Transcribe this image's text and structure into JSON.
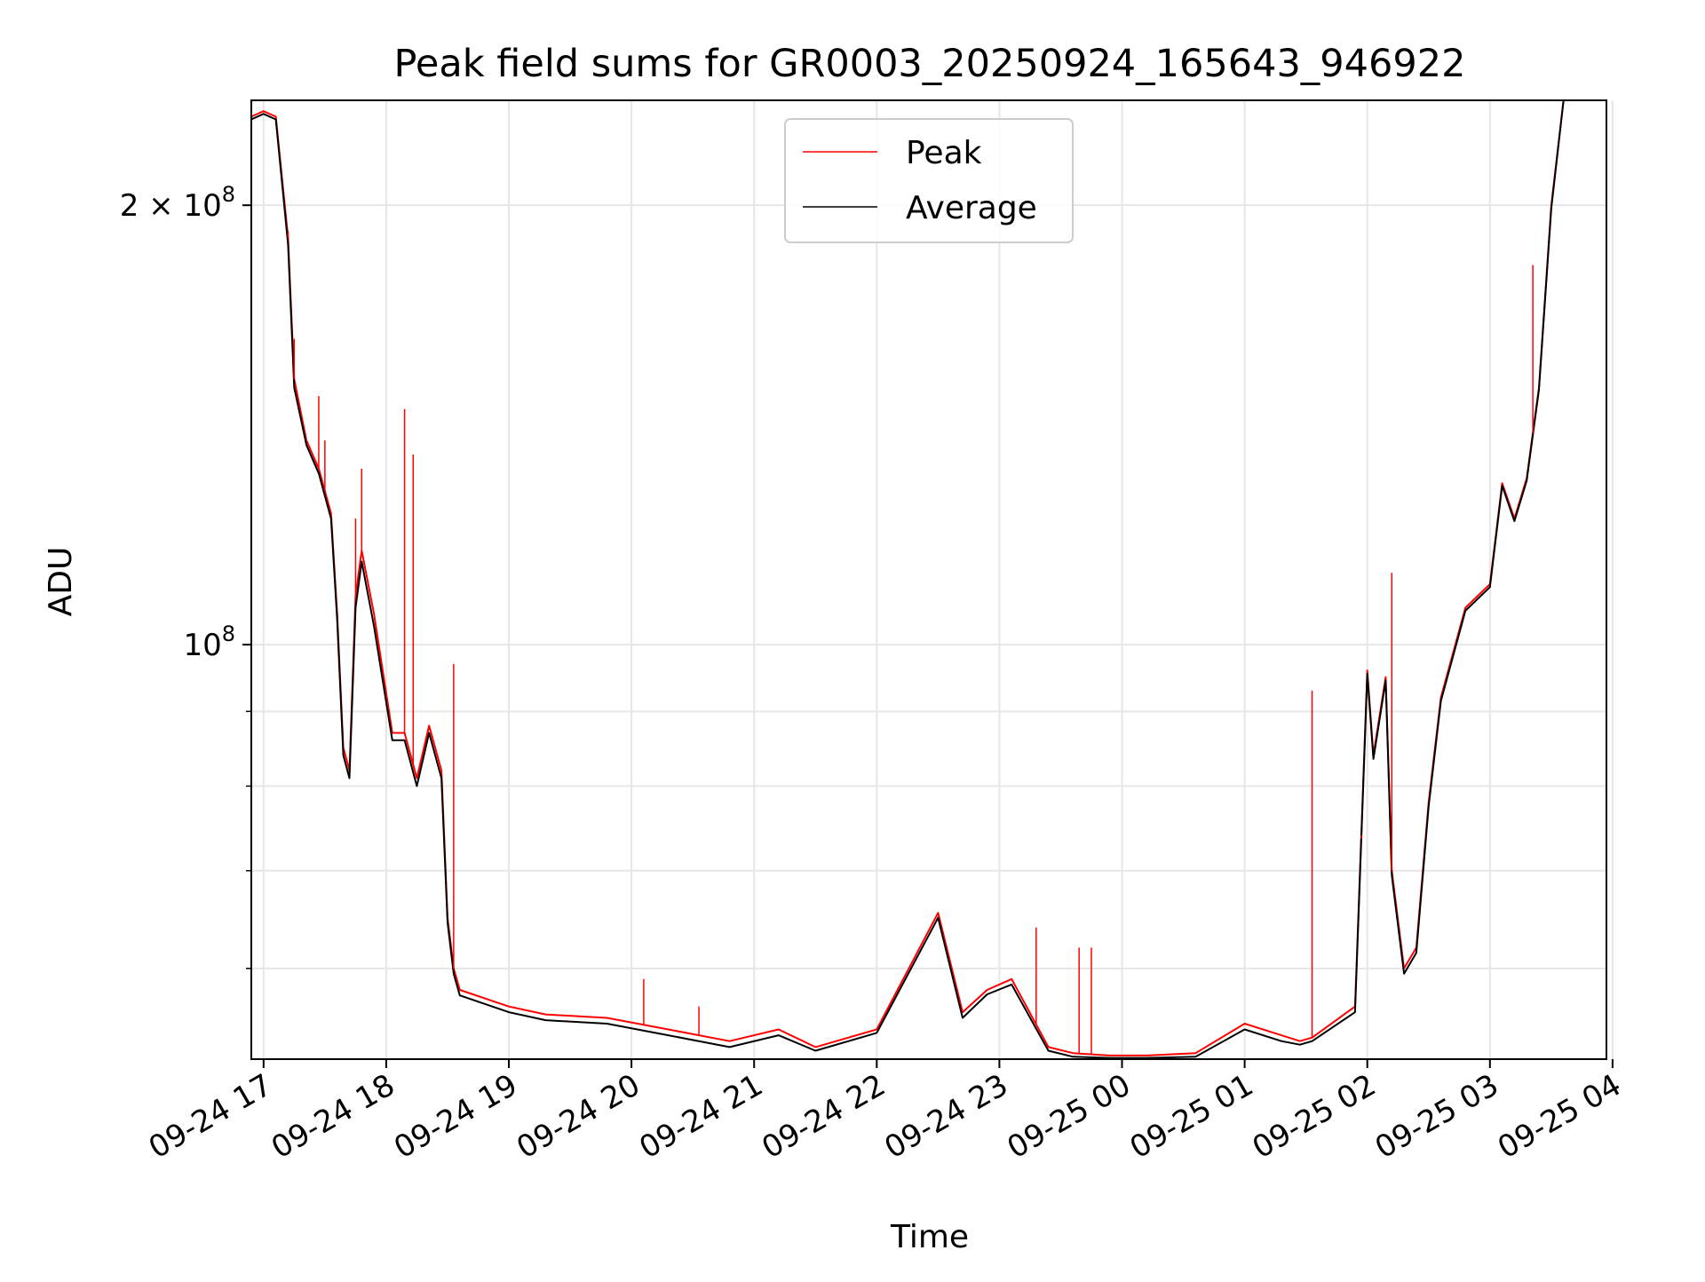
{
  "chart_data": {
    "type": "line",
    "title": "Peak field sums for GR0003_20250924_165643_946922",
    "xlabel": "Time",
    "ylabel": "ADU",
    "yscale": "log",
    "ylim": [
      52000000,
      236000000
    ],
    "xlim": [
      16.9,
      27.95
    ],
    "grid": true,
    "legend_position": "top-center",
    "x_ticks": [
      {
        "value": 17,
        "label": "09-24 17"
      },
      {
        "value": 18,
        "label": "09-24 18"
      },
      {
        "value": 19,
        "label": "09-24 19"
      },
      {
        "value": 20,
        "label": "09-24 20"
      },
      {
        "value": 21,
        "label": "09-24 21"
      },
      {
        "value": 22,
        "label": "09-24 22"
      },
      {
        "value": 23,
        "label": "09-24 23"
      },
      {
        "value": 24,
        "label": "09-25 00"
      },
      {
        "value": 25,
        "label": "09-25 01"
      },
      {
        "value": 26,
        "label": "09-25 02"
      },
      {
        "value": 27,
        "label": "09-25 03"
      },
      {
        "value": 28,
        "label": "09-25 04"
      }
    ],
    "y_ticks_major": [
      {
        "value": 100000000,
        "base": "10",
        "exp": "8",
        "prefix": ""
      },
      {
        "value": 200000000,
        "base": "10",
        "exp": "8",
        "prefix": "2 × "
      }
    ],
    "y_ticks_minor": [
      60000000,
      70000000,
      80000000,
      90000000
    ],
    "series": [
      {
        "name": "Peak",
        "color": "#ff0000",
        "x": [
          16.9,
          17.0,
          17.1,
          17.2,
          17.25,
          17.35,
          17.45,
          17.55,
          17.6,
          17.65,
          17.7,
          17.75,
          17.8,
          17.9,
          18.05,
          18.15,
          18.25,
          18.35,
          18.45,
          18.5,
          18.55,
          18.6,
          19.0,
          19.3,
          19.8,
          20.3,
          20.8,
          21.2,
          21.5,
          22.0,
          22.5,
          22.7,
          22.9,
          23.1,
          23.4,
          23.6,
          23.9,
          24.2,
          24.6,
          25.0,
          25.3,
          25.45,
          25.55,
          25.9,
          26.0,
          26.05,
          26.15,
          26.2,
          26.3,
          26.4,
          26.5,
          26.6,
          26.8,
          27.0,
          27.1,
          27.2,
          27.3,
          27.4,
          27.5,
          27.6,
          27.7,
          27.8
        ],
        "y": [
          230000000,
          232000000,
          230000000,
          190000000,
          152000000,
          138000000,
          132000000,
          123000000,
          105000000,
          85000000,
          82000000,
          108000000,
          116000000,
          105000000,
          87000000,
          87000000,
          81000000,
          88000000,
          82000000,
          65000000,
          60000000,
          58000000,
          56500000,
          55800000,
          55500000,
          54500000,
          53500000,
          54500000,
          53000000,
          54500000,
          65500000,
          56000000,
          58000000,
          59000000,
          53000000,
          52500000,
          52300000,
          52300000,
          52500000,
          55000000,
          54000000,
          53500000,
          53800000,
          56500000,
          96000000,
          84000000,
          95000000,
          70000000,
          60000000,
          62000000,
          78000000,
          92000000,
          106000000,
          110000000,
          129000000,
          122000000,
          130000000,
          150000000,
          200000000,
          236000000,
          236000000,
          236000000
        ]
      },
      {
        "name": "Average",
        "color": "#000000",
        "x": [
          16.9,
          17.0,
          17.1,
          17.2,
          17.25,
          17.35,
          17.45,
          17.55,
          17.6,
          17.65,
          17.7,
          17.75,
          17.8,
          17.9,
          18.05,
          18.15,
          18.25,
          18.35,
          18.45,
          18.5,
          18.55,
          18.6,
          19.0,
          19.3,
          19.8,
          20.3,
          20.8,
          21.2,
          21.5,
          22.0,
          22.5,
          22.7,
          22.9,
          23.1,
          23.4,
          23.6,
          23.9,
          24.2,
          24.6,
          25.0,
          25.3,
          25.45,
          25.55,
          25.9,
          26.0,
          26.05,
          26.15,
          26.2,
          26.3,
          26.4,
          26.5,
          26.6,
          26.8,
          27.0,
          27.1,
          27.2,
          27.3,
          27.4,
          27.5,
          27.6,
          27.7,
          27.8
        ],
        "y": [
          229000000,
          231000000,
          229000000,
          188000000,
          150000000,
          137000000,
          131000000,
          122000000,
          104000000,
          84000000,
          81000000,
          106000000,
          114000000,
          103000000,
          86000000,
          86000000,
          80000000,
          87000000,
          81000000,
          64500000,
          59500000,
          57500000,
          56000000,
          55300000,
          55000000,
          54000000,
          53000000,
          54000000,
          52700000,
          54200000,
          65000000,
          55500000,
          57600000,
          58500000,
          52700000,
          52200000,
          52100000,
          52100000,
          52200000,
          54500000,
          53500000,
          53200000,
          53500000,
          56000000,
          95500000,
          83500000,
          94500000,
          69500000,
          59500000,
          61500000,
          77500000,
          91500000,
          105500000,
          109500000,
          128500000,
          121500000,
          129500000,
          149500000,
          199000000,
          236000000,
          236000000,
          236000000
        ]
      }
    ],
    "spikes": [
      {
        "x": 17.2,
        "y": 192000000
      },
      {
        "x": 17.25,
        "y": 162000000
      },
      {
        "x": 17.45,
        "y": 148000000
      },
      {
        "x": 17.5,
        "y": 138000000
      },
      {
        "x": 17.75,
        "y": 122000000
      },
      {
        "x": 17.8,
        "y": 132000000
      },
      {
        "x": 18.15,
        "y": 145000000
      },
      {
        "x": 18.22,
        "y": 135000000
      },
      {
        "x": 18.55,
        "y": 97000000
      },
      {
        "x": 20.1,
        "y": 59000000
      },
      {
        "x": 20.55,
        "y": 56500000
      },
      {
        "x": 23.3,
        "y": 64000000
      },
      {
        "x": 23.65,
        "y": 62000000
      },
      {
        "x": 23.75,
        "y": 62000000
      },
      {
        "x": 25.55,
        "y": 93000000
      },
      {
        "x": 25.95,
        "y": 74000000
      },
      {
        "x": 26.2,
        "y": 112000000
      },
      {
        "x": 27.35,
        "y": 182000000
      }
    ]
  }
}
